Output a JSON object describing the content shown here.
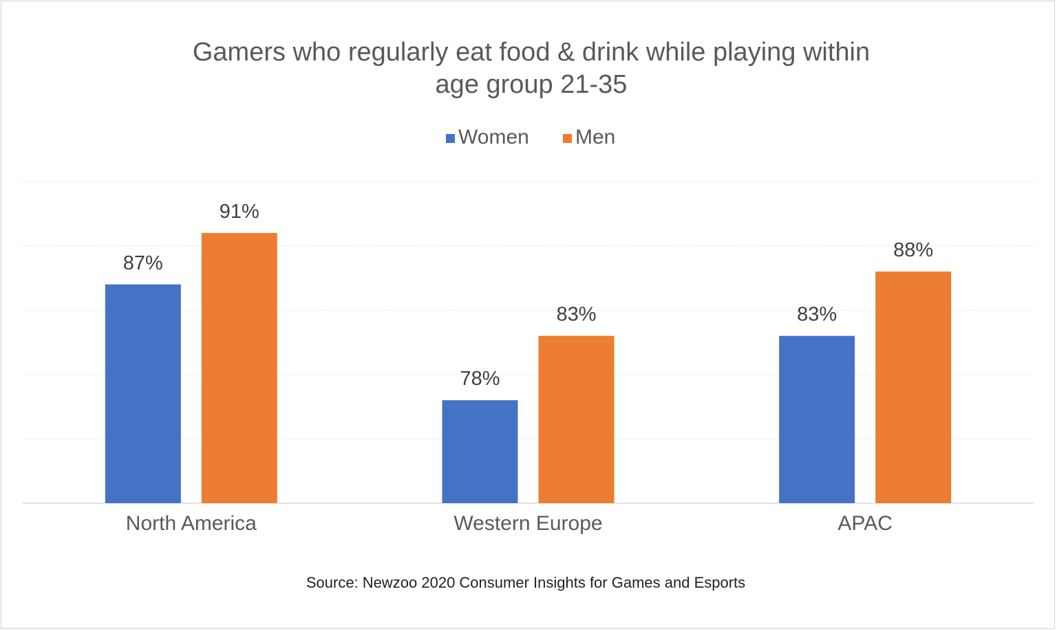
{
  "chart_data": {
    "type": "bar",
    "title": "Gamers who regularly eat food & drink while playing within age group 21-35",
    "title_lines": [
      "Gamers who regularly eat food & drink while playing within",
      "age group 21-35"
    ],
    "categories": [
      "North America",
      "Western Europe",
      "APAC"
    ],
    "series": [
      {
        "name": "Women",
        "color": "#4472C4",
        "values": [
          87,
          78,
          83
        ],
        "labels": [
          "87%",
          "78%",
          "83%"
        ]
      },
      {
        "name": "Men",
        "color": "#ED7D31",
        "values": [
          91,
          83,
          88
        ],
        "labels": [
          "91%",
          "83%",
          "88%"
        ]
      }
    ],
    "xlabel": "",
    "ylabel": "",
    "ylim": [
      70,
      95
    ],
    "grid": true,
    "gridlines": [
      75,
      80,
      85,
      90,
      95
    ],
    "legend_position": "top",
    "source": "Source: Newzoo 2020 Consumer Insights for Games and Esports"
  }
}
